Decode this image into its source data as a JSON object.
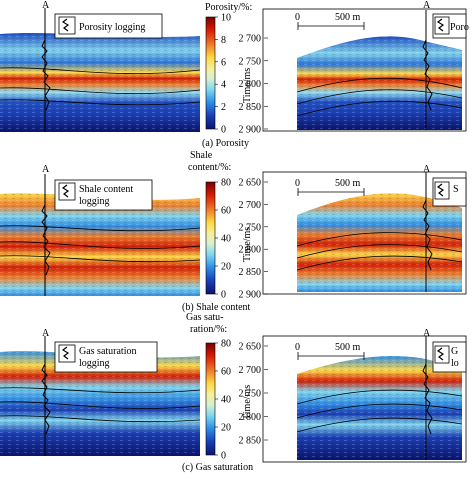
{
  "panels": [
    {
      "id": "a",
      "caption": "(a) Porosity",
      "colorbar": {
        "title_lines": [
          "Porosity/%:"
        ],
        "ticks": [
          "10",
          "8",
          "6",
          "4",
          "2",
          "0"
        ],
        "stops": [
          "#7a0000",
          "#d81e05",
          "#f07e2a",
          "#ffd844",
          "#f5f09a",
          "#d8f0d0",
          "#7ed6f0",
          "#2f8fe8",
          "#1a3fb8",
          "#0a1470"
        ]
      },
      "left_section": {
        "well_label": "A",
        "legend_text_lines": [
          "Porosity logging"
        ]
      },
      "right_section": {
        "well_label": "A",
        "scale_bar": {
          "zero": "0",
          "length": "500 m"
        },
        "y_axis_title": "Time/ms",
        "y_ticks": [
          "2 700",
          "2 750",
          "2 800",
          "2 850",
          "2 900"
        ],
        "legend_text_lines": [
          "Poro"
        ]
      }
    },
    {
      "id": "b",
      "caption": "(b) Shale content",
      "colorbar": {
        "title_lines": [
          "Shale",
          "content/%:"
        ],
        "ticks": [
          "80",
          "60",
          "40",
          "20",
          "0"
        ],
        "stops": [
          "#7a0000",
          "#d81e05",
          "#f07e2a",
          "#ffd844",
          "#f5f09a",
          "#d8f0d0",
          "#7ed6f0",
          "#2f8fe8",
          "#1a3fb8",
          "#0a1470"
        ]
      },
      "left_section": {
        "well_label": "A",
        "legend_text_lines": [
          "Shale content",
          "logging"
        ]
      },
      "right_section": {
        "well_label": "A",
        "scale_bar": {
          "zero": "0",
          "length": "500 m"
        },
        "y_axis_title": "Time/ms",
        "y_ticks": [
          "2 650",
          "2 700",
          "2 750",
          "2 800",
          "2 850",
          "2 900"
        ],
        "legend_text_lines": [
          "S"
        ]
      }
    },
    {
      "id": "c",
      "caption": "(c) Gas saturation",
      "colorbar": {
        "title_lines": [
          "Gas satu-",
          "ration/%:"
        ],
        "ticks": [
          "80",
          "60",
          "40",
          "20",
          "0"
        ],
        "stops": [
          "#7a0000",
          "#d81e05",
          "#f07e2a",
          "#ffd844",
          "#f5f09a",
          "#d8f0d0",
          "#7ed6f0",
          "#2f8fe8",
          "#1a3fb8",
          "#0a1470"
        ]
      },
      "left_section": {
        "well_label": "A",
        "legend_text_lines": [
          "Gas saturation",
          "logging"
        ]
      },
      "right_section": {
        "well_label": "A",
        "scale_bar": {
          "zero": "0",
          "length": "500 m"
        },
        "y_axis_title": "Time/ms",
        "y_ticks": [
          "2 650",
          "2 700",
          "2 750",
          "2 800",
          "2 850"
        ],
        "legend_text_lines": [
          "G",
          "lo"
        ]
      }
    }
  ]
}
